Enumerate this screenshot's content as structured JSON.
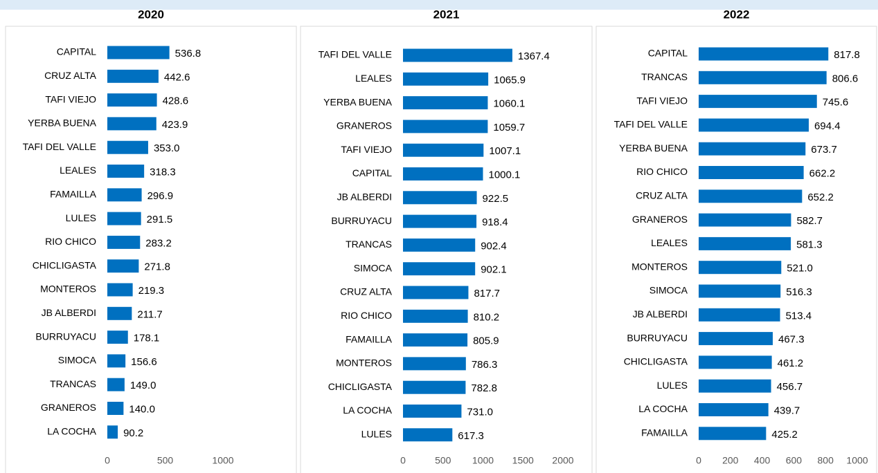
{
  "chart_data": [
    {
      "type": "bar",
      "orientation": "horizontal",
      "title": "2020",
      "color": "#0070c0",
      "categories": [
        "CAPITAL",
        "CRUZ ALTA",
        "TAFI VIEJO",
        "YERBA BUENA",
        "TAFI DEL VALLE",
        "LEALES",
        "FAMAILLA",
        "LULES",
        "RIO CHICO",
        "CHICLIGASTA",
        "MONTEROS",
        "JB ALBERDI",
        "BURRUYACU",
        "SIMOCA",
        "TRANCAS",
        "GRANEROS",
        "LA COCHA"
      ],
      "values": [
        536.8,
        442.6,
        428.6,
        423.9,
        353.0,
        318.3,
        296.9,
        291.5,
        283.2,
        271.8,
        219.3,
        211.7,
        178.1,
        156.6,
        149.0,
        140.0,
        90.2
      ],
      "value_labels": [
        "536.8",
        "442.6",
        "428.6",
        "423.9",
        "353.0",
        "318.3",
        "296.9",
        "291.5",
        "283.2",
        "271.8",
        "219.3",
        "211.7",
        "178.1",
        "156.6",
        "149.0",
        "140.0",
        "90.2"
      ],
      "xlim": [
        0,
        1000
      ],
      "xticks": [
        0,
        500,
        1000
      ]
    },
    {
      "type": "bar",
      "orientation": "horizontal",
      "title": "2021",
      "color": "#0070c0",
      "categories": [
        "TAFI DEL VALLE",
        "LEALES",
        "YERBA BUENA",
        "GRANEROS",
        "TAFI VIEJO",
        "CAPITAL",
        "JB ALBERDI",
        "BURRUYACU",
        "TRANCAS",
        "SIMOCA",
        "CRUZ ALTA",
        "RIO CHICO",
        "FAMAILLA",
        "MONTEROS",
        "CHICLIGASTA",
        "LA COCHA",
        "LULES"
      ],
      "values": [
        1367.4,
        1065.9,
        1060.1,
        1059.7,
        1007.1,
        1000.1,
        922.5,
        918.4,
        902.4,
        902.1,
        817.7,
        810.2,
        805.9,
        786.3,
        782.8,
        731.0,
        617.3
      ],
      "value_labels": [
        "1367.4",
        "1065.9",
        "1060.1",
        "1059.7",
        "1007.1",
        "1000.1",
        "922.5",
        "918.4",
        "902.4",
        "902.1",
        "817.7",
        "810.2",
        "805.9",
        "786.3",
        "782.8",
        "731.0",
        "617.3"
      ],
      "xlim": [
        0,
        2000
      ],
      "xticks": [
        0,
        500,
        1000,
        1500,
        2000
      ]
    },
    {
      "type": "bar",
      "orientation": "horizontal",
      "title": "2022",
      "color": "#0070c0",
      "categories": [
        "CAPITAL",
        "TRANCAS",
        "TAFI VIEJO",
        "TAFI DEL VALLE",
        "YERBA BUENA",
        "RIO CHICO",
        "CRUZ ALTA",
        "GRANEROS",
        "LEALES",
        "MONTEROS",
        "SIMOCA",
        "JB ALBERDI",
        "BURRUYACU",
        "CHICLIGASTA",
        "LULES",
        "LA COCHA",
        "FAMAILLA"
      ],
      "values": [
        817.8,
        806.6,
        745.6,
        694.4,
        673.7,
        662.2,
        652.2,
        582.7,
        581.3,
        521.0,
        516.3,
        513.4,
        467.3,
        461.2,
        456.7,
        439.7,
        425.2
      ],
      "value_labels": [
        "817.8",
        "806.6",
        "745.6",
        "694.4",
        "673.7",
        "662.2",
        "652.2",
        "582.7",
        "581.3",
        "521.0",
        "516.3",
        "513.4",
        "467.3",
        "461.2",
        "456.7",
        "439.7",
        "425.2"
      ],
      "xlim": [
        0,
        1000
      ],
      "xticks": [
        0,
        200,
        400,
        600,
        800,
        1000
      ]
    }
  ]
}
